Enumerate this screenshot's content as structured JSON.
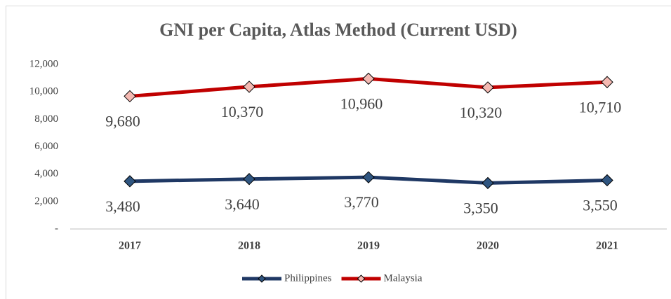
{
  "chart_data": {
    "type": "line",
    "title": "GNI per Capita, Atlas Method (Current USD)",
    "categories": [
      "2017",
      "2018",
      "2019",
      "2020",
      "2021"
    ],
    "series": [
      {
        "name": "Philippines",
        "color": "#1f3864",
        "marker_color": "#2f5580",
        "values": [
          3480,
          3640,
          3770,
          3350,
          3550
        ],
        "value_labels": [
          "3,480",
          "3,640",
          "3,770",
          "3,350",
          "3,550"
        ]
      },
      {
        "name": "Malaysia",
        "color": "#c00000",
        "marker_color": "#f4b9b2",
        "values": [
          9680,
          10370,
          10960,
          10320,
          10710
        ],
        "value_labels": [
          "9,680",
          "10,370",
          "10,960",
          "10,320",
          "10,710"
        ]
      }
    ],
    "ylim": [
      0,
      12000
    ],
    "yticks": [
      {
        "value": 0,
        "label": "-"
      },
      {
        "value": 2000,
        "label": "2,000"
      },
      {
        "value": 4000,
        "label": "4,000"
      },
      {
        "value": 6000,
        "label": "6,000"
      },
      {
        "value": 8000,
        "label": "8,000"
      },
      {
        "value": 10000,
        "label": "10,000"
      },
      {
        "value": 12000,
        "label": "12,000"
      }
    ],
    "grid": false,
    "legend": "bottom"
  }
}
